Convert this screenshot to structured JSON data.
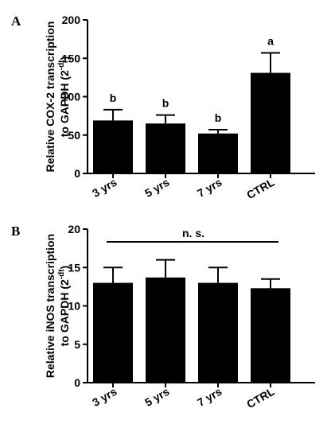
{
  "chart_data": [
    {
      "type": "bar",
      "panel_label": "A",
      "categories": [
        "3 yrs",
        "5 yrs",
        "7 yrs",
        "CTRL"
      ],
      "values": [
        69,
        65,
        52,
        131
      ],
      "errors": [
        14,
        11,
        5,
        26
      ],
      "significance_letters": [
        "b",
        "b",
        "b",
        "a"
      ],
      "ylabel_line1": "Relative COX-2 transcription",
      "ylabel_line2_pre": "to GAPDH (2",
      "ylabel_sup": "-dt",
      "ylabel_line2_post": ")",
      "ylim": [
        0,
        200
      ],
      "yticks": [
        0,
        50,
        100,
        150,
        200
      ],
      "grid": false,
      "bar_color": "#000000"
    },
    {
      "type": "bar",
      "panel_label": "B",
      "categories": [
        "3 yrs",
        "5 yrs",
        "7 yrs",
        "CTRL"
      ],
      "values": [
        13.0,
        13.7,
        13.0,
        12.3
      ],
      "errors": [
        2.0,
        2.3,
        2.0,
        1.2
      ],
      "annotation": "n. s.",
      "ylabel_line1": "Relative iNOS transcription",
      "ylabel_line2_pre": "to GAPDH (2",
      "ylabel_sup": "-dt",
      "ylabel_line2_post": ")",
      "ylim": [
        0,
        20
      ],
      "yticks": [
        0,
        5,
        10,
        15,
        20
      ],
      "grid": false,
      "bar_color": "#000000"
    }
  ]
}
